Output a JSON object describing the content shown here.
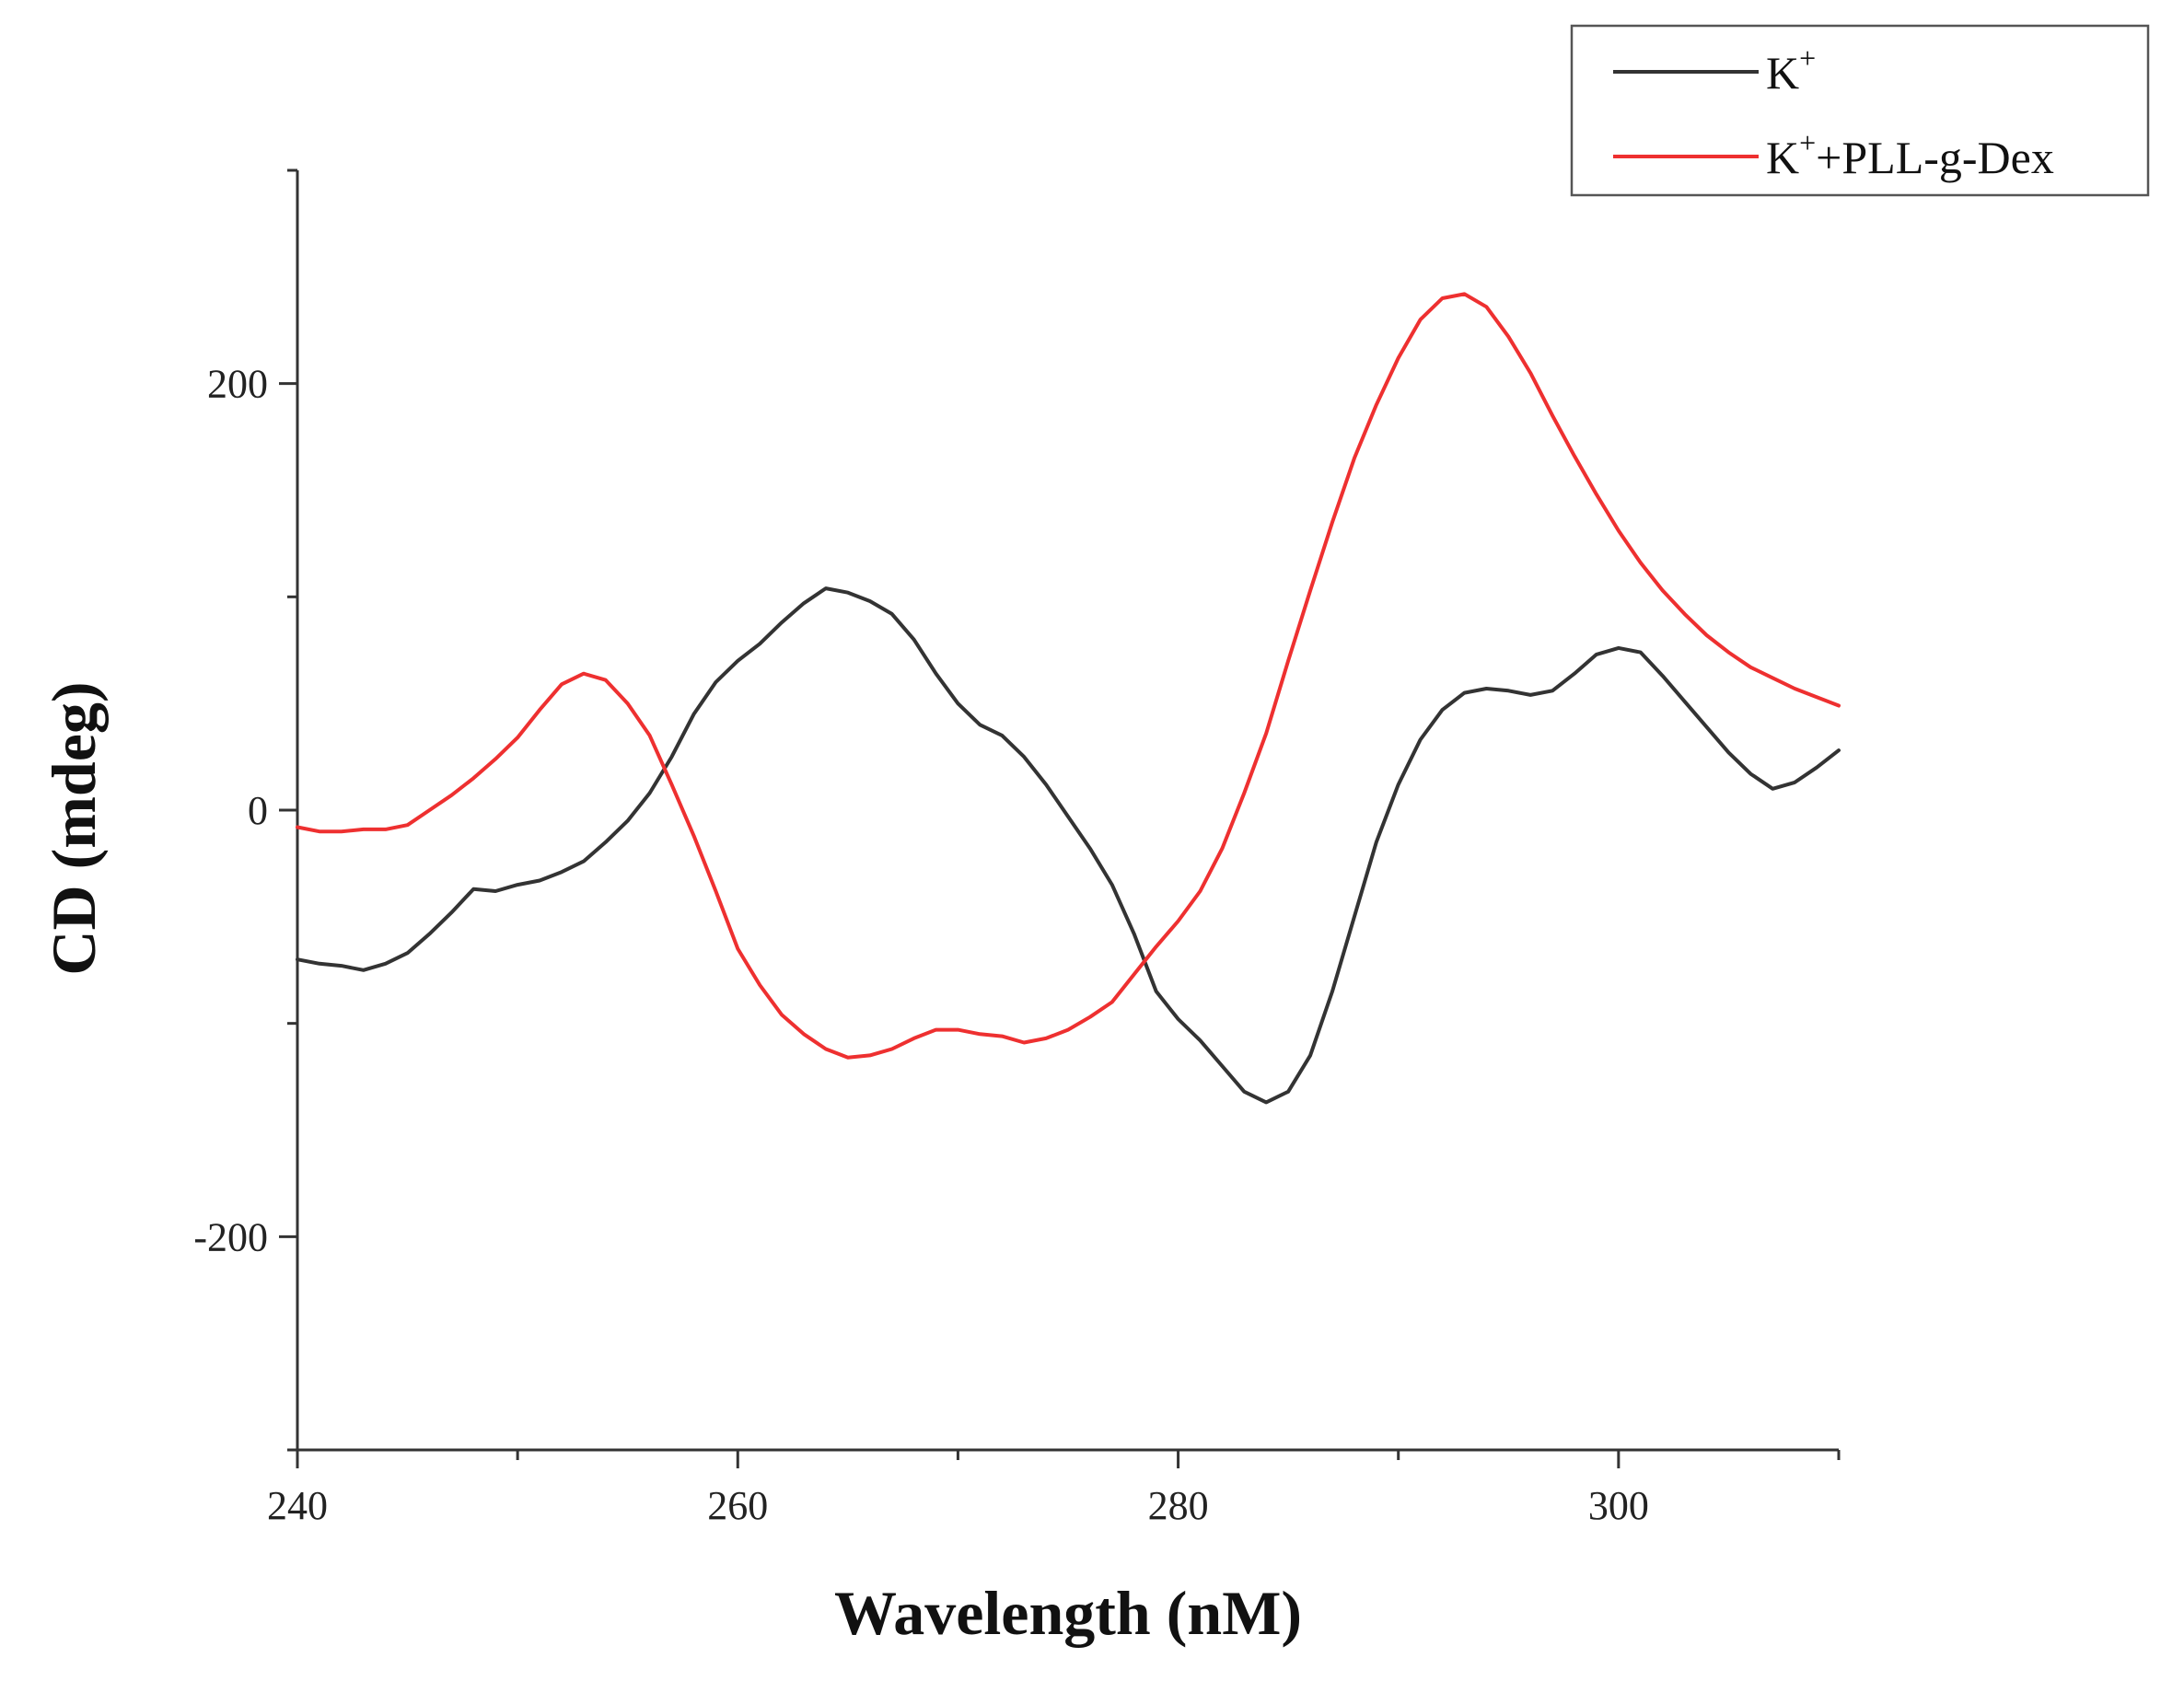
{
  "chart_data": {
    "type": "line",
    "title": "",
    "xlabel": "Wavelength (nM)",
    "ylabel": "CD (mdeg)",
    "xlim": [
      240,
      310
    ],
    "ylim": [
      -300,
      300
    ],
    "x_ticks": [
      240,
      260,
      280,
      300
    ],
    "x_minor_ticks": [
      250,
      270,
      290,
      310
    ],
    "y_ticks": [
      200,
      0,
      -200
    ],
    "y_tick_labels": [
      "200",
      "0",
      "-200"
    ],
    "y_minor_ticks": [
      300,
      100,
      -100,
      -300
    ],
    "legend": {
      "placement": "top-right",
      "entries": [
        {
          "base": "K",
          "sup": "+",
          "rest": ""
        },
        {
          "base": "K",
          "sup": "+",
          "rest": "+PLL-g-Dex"
        }
      ]
    },
    "series": [
      {
        "name": "K+",
        "color": "#333333",
        "points": [
          [
            240,
            -70
          ],
          [
            241,
            -72
          ],
          [
            242,
            -73
          ],
          [
            243,
            -75
          ],
          [
            244,
            -72
          ],
          [
            245,
            -67
          ],
          [
            246,
            -58
          ],
          [
            247,
            -48
          ],
          [
            248,
            -37
          ],
          [
            249,
            -38
          ],
          [
            250,
            -35
          ],
          [
            251,
            -33
          ],
          [
            252,
            -29
          ],
          [
            253,
            -24
          ],
          [
            254,
            -15
          ],
          [
            255,
            -5
          ],
          [
            256,
            8
          ],
          [
            257,
            25
          ],
          [
            258,
            45
          ],
          [
            259,
            60
          ],
          [
            260,
            70
          ],
          [
            261,
            78
          ],
          [
            262,
            88
          ],
          [
            263,
            97
          ],
          [
            264,
            104
          ],
          [
            265,
            102
          ],
          [
            266,
            98
          ],
          [
            267,
            92
          ],
          [
            268,
            80
          ],
          [
            269,
            64
          ],
          [
            270,
            50
          ],
          [
            271,
            40
          ],
          [
            272,
            35
          ],
          [
            273,
            25
          ],
          [
            274,
            12
          ],
          [
            275,
            -3
          ],
          [
            276,
            -18
          ],
          [
            277,
            -35
          ],
          [
            278,
            -58
          ],
          [
            279,
            -85
          ],
          [
            280,
            -98
          ],
          [
            281,
            -108
          ],
          [
            282,
            -120
          ],
          [
            283,
            -132
          ],
          [
            284,
            -137
          ],
          [
            285,
            -132
          ],
          [
            286,
            -115
          ],
          [
            287,
            -85
          ],
          [
            288,
            -50
          ],
          [
            289,
            -15
          ],
          [
            290,
            12
          ],
          [
            291,
            33
          ],
          [
            292,
            47
          ],
          [
            293,
            55
          ],
          [
            294,
            57
          ],
          [
            295,
            56
          ],
          [
            296,
            54
          ],
          [
            297,
            56
          ],
          [
            298,
            64
          ],
          [
            299,
            73
          ],
          [
            300,
            76
          ],
          [
            301,
            74
          ],
          [
            302,
            63
          ],
          [
            303,
            51
          ],
          [
            304,
            39
          ],
          [
            305,
            27
          ],
          [
            306,
            17
          ],
          [
            307,
            10
          ],
          [
            308,
            13
          ],
          [
            309,
            20
          ],
          [
            310,
            28
          ]
        ]
      },
      {
        "name": "K+ +PLL-g-Dex",
        "color": "#ee3030",
        "points": [
          [
            240,
            -8
          ],
          [
            241,
            -10
          ],
          [
            242,
            -10
          ],
          [
            243,
            -9
          ],
          [
            244,
            -9
          ],
          [
            245,
            -7
          ],
          [
            246,
            0
          ],
          [
            247,
            7
          ],
          [
            248,
            15
          ],
          [
            249,
            24
          ],
          [
            250,
            34
          ],
          [
            251,
            47
          ],
          [
            252,
            59
          ],
          [
            253,
            64
          ],
          [
            254,
            61
          ],
          [
            255,
            50
          ],
          [
            256,
            35
          ],
          [
            257,
            12
          ],
          [
            258,
            -12
          ],
          [
            259,
            -38
          ],
          [
            260,
            -65
          ],
          [
            261,
            -82
          ],
          [
            262,
            -96
          ],
          [
            263,
            -105
          ],
          [
            264,
            -112
          ],
          [
            265,
            -116
          ],
          [
            266,
            -115
          ],
          [
            267,
            -112
          ],
          [
            268,
            -107
          ],
          [
            269,
            -103
          ],
          [
            270,
            -103
          ],
          [
            271,
            -105
          ],
          [
            272,
            -106
          ],
          [
            273,
            -109
          ],
          [
            274,
            -107
          ],
          [
            275,
            -103
          ],
          [
            276,
            -97
          ],
          [
            277,
            -90
          ],
          [
            278,
            -77
          ],
          [
            279,
            -64
          ],
          [
            280,
            -52
          ],
          [
            281,
            -38
          ],
          [
            282,
            -18
          ],
          [
            283,
            8
          ],
          [
            284,
            36
          ],
          [
            285,
            70
          ],
          [
            286,
            103
          ],
          [
            287,
            135
          ],
          [
            288,
            165
          ],
          [
            289,
            190
          ],
          [
            290,
            212
          ],
          [
            291,
            230
          ],
          [
            292,
            240
          ],
          [
            293,
            242
          ],
          [
            294,
            236
          ],
          [
            295,
            222
          ],
          [
            296,
            205
          ],
          [
            297,
            185
          ],
          [
            298,
            166
          ],
          [
            299,
            148
          ],
          [
            300,
            131
          ],
          [
            301,
            116
          ],
          [
            302,
            103
          ],
          [
            303,
            92
          ],
          [
            304,
            82
          ],
          [
            305,
            74
          ],
          [
            306,
            67
          ],
          [
            307,
            62
          ],
          [
            308,
            57
          ],
          [
            309,
            53
          ],
          [
            310,
            49
          ]
        ]
      }
    ]
  }
}
